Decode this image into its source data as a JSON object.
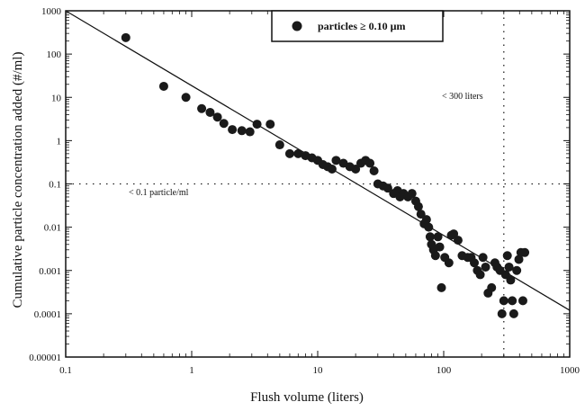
{
  "chart_data": {
    "type": "scatter",
    "xlabel": "Flush volume (liters)",
    "ylabel": "Cumulative particle concentration added (#/ml)",
    "x_scale": "log",
    "y_scale": "log",
    "xlim": [
      0.1,
      1000
    ],
    "ylim": [
      1e-05,
      1000
    ],
    "x_ticks": [
      "0.1",
      "1",
      "10",
      "100",
      "1000"
    ],
    "y_ticks": [
      "0.00001",
      "0.0001",
      "0.001",
      "0.01",
      "0.1",
      "1",
      "10",
      "100",
      "1000"
    ],
    "legend": {
      "label": "particles ≥ 0.10 µm",
      "position": "top-right"
    },
    "grid": false,
    "series": [
      {
        "name": "particles ≥ 0.10 µm",
        "points": [
          [
            0.3,
            240
          ],
          [
            0.6,
            18
          ],
          [
            0.9,
            10
          ],
          [
            1.2,
            5.5
          ],
          [
            1.4,
            4.5
          ],
          [
            1.6,
            3.5
          ],
          [
            1.8,
            2.5
          ],
          [
            2.1,
            1.8
          ],
          [
            2.5,
            1.7
          ],
          [
            2.9,
            1.6
          ],
          [
            3.3,
            2.4
          ],
          [
            4.2,
            2.4
          ],
          [
            5.0,
            0.8
          ],
          [
            6.0,
            0.5
          ],
          [
            7.0,
            0.5
          ],
          [
            8.0,
            0.45
          ],
          [
            9.0,
            0.4
          ],
          [
            10,
            0.35
          ],
          [
            11,
            0.28
          ],
          [
            12,
            0.25
          ],
          [
            13,
            0.22
          ],
          [
            14,
            0.35
          ],
          [
            16,
            0.3
          ],
          [
            18,
            0.25
          ],
          [
            20,
            0.22
          ],
          [
            22,
            0.3
          ],
          [
            24,
            0.35
          ],
          [
            26,
            0.3
          ],
          [
            28,
            0.2
          ],
          [
            30,
            0.1
          ],
          [
            33,
            0.09
          ],
          [
            36,
            0.08
          ],
          [
            40,
            0.06
          ],
          [
            43,
            0.07
          ],
          [
            45,
            0.05
          ],
          [
            48,
            0.06
          ],
          [
            52,
            0.05
          ],
          [
            56,
            0.06
          ],
          [
            60,
            0.04
          ],
          [
            63,
            0.03
          ],
          [
            66,
            0.02
          ],
          [
            70,
            0.012
          ],
          [
            73,
            0.015
          ],
          [
            76,
            0.01
          ],
          [
            78,
            0.006
          ],
          [
            80,
            0.004
          ],
          [
            83,
            0.003
          ],
          [
            86,
            0.0022
          ],
          [
            90,
            0.006
          ],
          [
            93,
            0.0035
          ],
          [
            96,
            0.0004
          ],
          [
            102,
            0.002
          ],
          [
            110,
            0.0015
          ],
          [
            115,
            0.0065
          ],
          [
            120,
            0.007
          ],
          [
            130,
            0.005
          ],
          [
            140,
            0.0022
          ],
          [
            155,
            0.002
          ],
          [
            165,
            0.002
          ],
          [
            175,
            0.0015
          ],
          [
            185,
            0.001
          ],
          [
            195,
            0.0008
          ],
          [
            205,
            0.002
          ],
          [
            215,
            0.0012
          ],
          [
            225,
            0.0003
          ],
          [
            240,
            0.0004
          ],
          [
            255,
            0.0015
          ],
          [
            265,
            0.0012
          ],
          [
            280,
            0.001
          ],
          [
            290,
            0.0001
          ],
          [
            300,
            0.0002
          ],
          [
            310,
            0.0008
          ],
          [
            320,
            0.0022
          ],
          [
            330,
            0.0012
          ],
          [
            340,
            0.0006
          ],
          [
            350,
            0.0002
          ],
          [
            360,
            0.0001
          ],
          [
            380,
            0.001
          ],
          [
            395,
            0.0018
          ],
          [
            410,
            0.0026
          ],
          [
            425,
            0.0002
          ],
          [
            440,
            0.0026
          ]
        ]
      }
    ],
    "trend_line": {
      "from": [
        0.1,
        1000
      ],
      "to": [
        1000,
        0.00012
      ]
    },
    "reference_lines": [
      {
        "axis": "y",
        "value": 0.1,
        "label": "< 0.1 particle/ml"
      },
      {
        "axis": "x",
        "value": 300,
        "label": "< 300 liters"
      }
    ]
  }
}
